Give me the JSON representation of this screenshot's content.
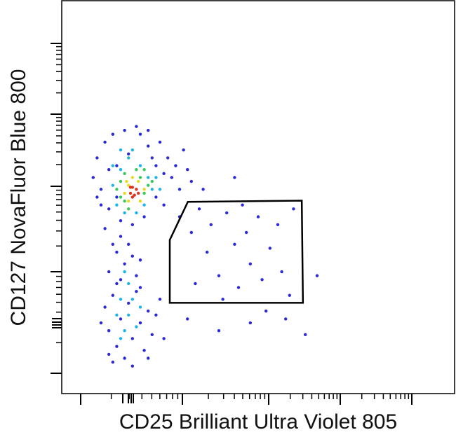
{
  "chart_data": {
    "type": "scatter",
    "x_label": "CD25 Brilliant Ultra Violet 805",
    "y_label": "CD127 NovaFluor Blue 800",
    "xlim": [
      0,
      100
    ],
    "ylim": [
      0,
      100
    ],
    "series": [
      {
        "color": "#2a2ad6",
        "x": [
          8,
          9,
          10,
          11,
          12,
          13,
          14,
          15,
          16,
          17,
          18,
          20,
          21,
          22,
          23,
          24,
          25,
          26,
          27,
          28,
          29,
          30,
          31,
          12,
          10,
          22,
          19,
          14,
          26,
          24,
          32,
          33,
          9,
          11,
          15,
          13,
          14,
          16,
          18,
          12,
          15,
          19,
          17,
          20,
          11,
          12,
          13,
          14,
          15,
          16,
          17,
          18,
          19,
          20,
          21,
          22,
          23,
          12,
          14,
          20,
          24,
          10,
          13,
          18,
          22,
          25,
          26,
          30,
          33,
          35,
          37,
          38,
          40,
          42,
          44,
          45,
          47,
          48,
          50,
          51,
          53,
          55,
          56,
          58,
          59,
          34,
          41,
          46,
          52,
          36,
          44,
          57,
          62,
          48,
          40,
          32,
          65
        ],
        "values": [
          55,
          60,
          52,
          64,
          47,
          66,
          58,
          44,
          67,
          61,
          43,
          66,
          45,
          63,
          60,
          50,
          64,
          56,
          60,
          55,
          58,
          52,
          62,
          57,
          48,
          67,
          68,
          50,
          48,
          58,
          57,
          54,
          50,
          42,
          40,
          38,
          36,
          33,
          35,
          31,
          29,
          30,
          38,
          34,
          22,
          16,
          25,
          12,
          19,
          9,
          23,
          14,
          26,
          18,
          11,
          21,
          15,
          10,
          28,
          27,
          20,
          18,
          8,
          7,
          9,
          24,
          14,
          45,
          41,
          47,
          36,
          43,
          30,
          46,
          38,
          27,
          41,
          33,
          45,
          29,
          37,
          43,
          31,
          25,
          47,
          28,
          24,
          48,
          21,
          52,
          55,
          19,
          15,
          18,
          16,
          19,
          30
        ]
      },
      {
        "color": "#1cb6e6",
        "x": [
          13,
          14,
          15,
          16,
          17,
          20,
          21,
          22,
          23,
          24,
          13,
          19,
          25,
          15,
          18,
          14,
          15,
          16,
          17,
          18,
          19,
          15,
          17,
          20,
          16
        ],
        "values": [
          53,
          48,
          57,
          46,
          60,
          58,
          48,
          55,
          52,
          55,
          58,
          46,
          52,
          62,
          62,
          20,
          24,
          16,
          20,
          24,
          17,
          14,
          28,
          22,
          31
        ]
      },
      {
        "color": "#3cc85a",
        "x": [
          14,
          15,
          16,
          17,
          20,
          21,
          22,
          16,
          19,
          15,
          21,
          23
        ],
        "values": [
          52,
          50,
          56,
          47,
          55,
          51,
          53,
          49,
          57,
          54,
          57,
          54
        ]
      },
      {
        "color": "#e6dc1e",
        "x": [
          16,
          16.5,
          17,
          19.5,
          20,
          18,
          21,
          17
        ],
        "values": [
          51,
          54,
          49,
          54,
          49,
          55,
          52,
          53
        ]
      },
      {
        "color": "#e0301e",
        "x": [
          17.5,
          18,
          18.5,
          19,
          18,
          17.5,
          19.5
        ],
        "values": [
          51,
          52.5,
          50.5,
          52,
          50,
          52.5,
          51
        ]
      }
    ],
    "gate": {
      "x": [
        32.1,
        61.1,
        61.4,
        27.5,
        27.5
      ],
      "y": [
        48.8,
        49.1,
        23.1,
        23.1,
        39.1
      ]
    }
  }
}
